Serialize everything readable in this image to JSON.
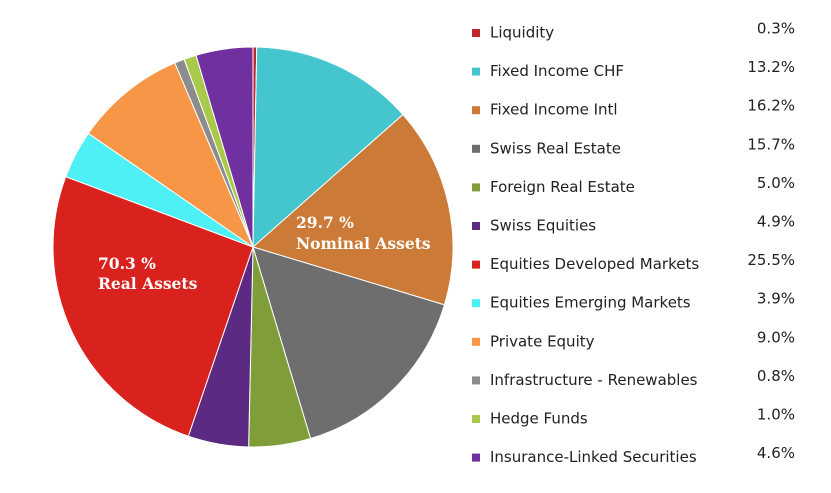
{
  "chart_data": {
    "type": "pie",
    "categories": [
      "Liquidity",
      "Fixed Income CHF",
      "Fixed Income Intl",
      "Swiss Real Estate",
      "Foreign Real Estate",
      "Swiss Equities",
      "Equities Developed Markets",
      "Equities Emerging Markets",
      "Private Equity",
      "Infrastructure - Renewables",
      "Hedge Funds",
      "Insurance-Linked Securities"
    ],
    "values": [
      0.3,
      13.2,
      16.2,
      15.7,
      5.0,
      4.9,
      25.5,
      3.9,
      9.0,
      0.8,
      1.0,
      4.6
    ],
    "value_labels": [
      "0.3%",
      "13.2%",
      "16.2%",
      "15.7%",
      "5.0%",
      "4.9%",
      "25.5%",
      "3.9%",
      "9.0%",
      "0.8%",
      "1.0%",
      "4.6%"
    ],
    "colors": [
      "#c0272d",
      "#45c6cf",
      "#cc7a38",
      "#6e6e6e",
      "#7f9e3a",
      "#5c2a82",
      "#d9221e",
      "#4ef0f5",
      "#f79646",
      "#8c8c8c",
      "#a9c94a",
      "#7030a0"
    ],
    "annotations": [
      [
        "29.7 %",
        "Nominal Assets"
      ],
      [
        "70.3 %",
        "Real Assets"
      ]
    ]
  }
}
